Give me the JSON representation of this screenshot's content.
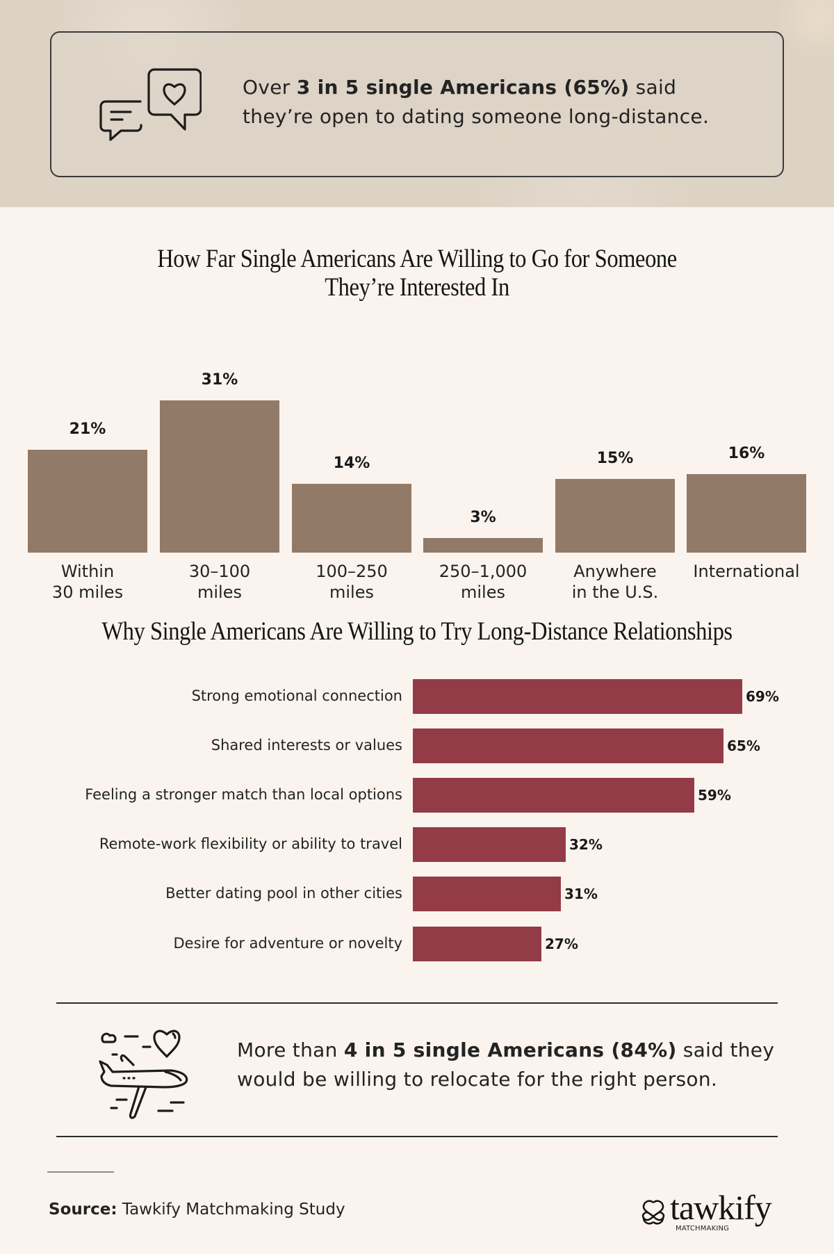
{
  "header": {
    "stat": {
      "prefix": "Over ",
      "highlight": "3 in 5 single Americans (65%)",
      "suffix_line1": " said",
      "line2": "they’re open to dating someone long-distance."
    },
    "icon": "chat-bubbles-heart-icon"
  },
  "distance_section": {
    "title_line1": "How Far Single Americans Are Willing to Go for Someone",
    "title_line2": "They’re Interested In"
  },
  "reasons_section": {
    "title": "Why Single Americans Are Willing to Try Long-Distance Relationships"
  },
  "relocate": {
    "icon": "airplane-heart-icon",
    "prefix": "More than ",
    "highlight": "4 in 5 single Americans (84%)",
    "suffix": " said they would be willing to relocate for the right person."
  },
  "footer": {
    "source_label": "Source:",
    "source_text": " Tawkify Matchmaking Study",
    "logo_word": "tawkify",
    "logo_sub": "MATCHMAKING"
  },
  "colors": {
    "background": "#fbf4ee",
    "header_background": "#ddd3c5",
    "distance_bar": "#927a68",
    "reason_bar": "#943b48",
    "text": "#232323"
  },
  "chart_data": [
    {
      "type": "bar",
      "orientation": "vertical",
      "title": "How Far Single Americans Are Willing to Go for Someone They’re Interested In",
      "categories": [
        "Within 30 miles",
        "30–100 miles",
        "100–250 miles",
        "250–1,000 miles",
        "Anywhere in the U.S.",
        "International"
      ],
      "category_lines": [
        [
          "Within",
          "30 miles"
        ],
        [
          "30–100",
          "miles"
        ],
        [
          "100–250",
          "miles"
        ],
        [
          "250–1,000",
          "miles"
        ],
        [
          "Anywhere",
          "in the U.S."
        ],
        [
          "International"
        ]
      ],
      "values": [
        21,
        31,
        14,
        3,
        15,
        16
      ],
      "value_labels": [
        "21%",
        "31%",
        "14%",
        "3%",
        "15%",
        "16%"
      ],
      "xlabel": "",
      "ylabel": "",
      "unit": "%",
      "grid": false,
      "legend": "none"
    },
    {
      "type": "bar",
      "orientation": "horizontal",
      "title": "Why Single Americans Are Willing to Try Long-Distance Relationships",
      "categories": [
        "Strong emotional connection",
        "Shared interests or values",
        "Feeling a stronger match than local options",
        "Remote-work flexibility or ability to travel",
        "Better dating pool in other cities",
        "Desire for adventure or novelty"
      ],
      "values": [
        69,
        65,
        59,
        32,
        31,
        27
      ],
      "value_labels": [
        "69%",
        "65%",
        "59%",
        "32%",
        "31%",
        "27%"
      ],
      "xlabel": "",
      "ylabel": "",
      "unit": "%",
      "grid": false,
      "legend": "none"
    }
  ]
}
